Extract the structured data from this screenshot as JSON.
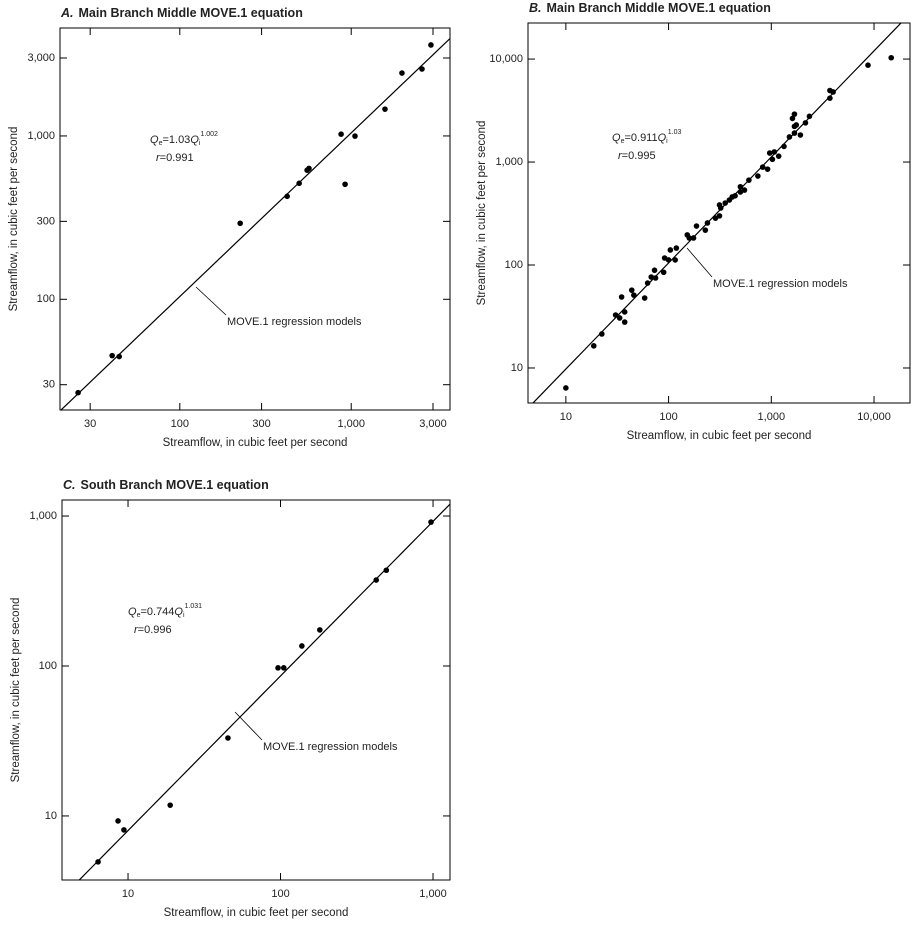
{
  "chart_data": [
    {
      "type": "scatter",
      "panel": "A.",
      "title": "Main Branch Middle MOVE.1 equation",
      "x_label": "Streamflow, in cubic feet per second",
      "y_label": "Streamflow, in cubic feet per second",
      "log_x": true,
      "log_y": true,
      "point_color": "#000000",
      "line_color": "#000000",
      "xlim": [
        20,
        3770
      ],
      "ylim": [
        21,
        4580
      ],
      "xticks": [
        30,
        100,
        300,
        {
          "value": 1000,
          "label": "1,000"
        },
        {
          "value": 3000,
          "label": "3,000"
        }
      ],
      "yticks": [
        30,
        100,
        300,
        {
          "value": 1000,
          "label": "1,000"
        },
        {
          "value": 3000,
          "label": "3,000"
        }
      ],
      "x": [
        25.5,
        40.3,
        44.3,
        225,
        423,
        497,
        553,
        567,
        873,
        921,
        1052,
        1574,
        1977,
        2588,
        2919
      ],
      "values": [
        26.8,
        45.2,
        44.6,
        292,
        427,
        513,
        617,
        633,
        1025,
        506,
        998,
        1459,
        2427,
        2570,
        3606
      ],
      "fit": {
        "coefficient": 1.03,
        "exponent": 1.002
      },
      "equation": [
        "Q",
        "e",
        "=1.03",
        "Q",
        "i",
        "1.002"
      ],
      "r_line": [
        "r",
        "=0.991"
      ],
      "annotation": "MOVE.1 regression models"
    },
    {
      "type": "scatter",
      "panel": "B.",
      "title": "Main Branch Middle MOVE.1 equation",
      "x_label": "Streamflow, in cubic feet per second",
      "y_label": "Streamflow, in cubic feet per second",
      "log_x": true,
      "log_y": true,
      "point_color": "#000000",
      "line_color": "#000000",
      "xlim": [
        4.28,
        22400
      ],
      "ylim": [
        4.57,
        22400
      ],
      "xticks": [
        10,
        100,
        {
          "value": 1000,
          "label": "1,000"
        },
        {
          "value": 10000,
          "label": "10,000"
        }
      ],
      "yticks": [
        10,
        100,
        {
          "value": 1000,
          "label": "1,000"
        },
        {
          "value": 10000,
          "label": "10,000"
        }
      ],
      "x": [
        10,
        18.7,
        22.4,
        30.5,
        33.4,
        34.9,
        37.4,
        37.4,
        43.8,
        45.9,
        58.5,
        62.5,
        67.8,
        73,
        74.7,
        89.6,
        91.5,
        100,
        104,
        116,
        119,
        152,
        159,
        175,
        187,
        228,
        239,
        286,
        313,
        313,
        322,
        356,
        391,
        416,
        444,
        500,
        500,
        548,
        605,
        740,
        825,
        920,
        965,
        1025,
        1070,
        1180,
        1330,
        1500,
        1607,
        1680,
        1750,
        1680,
        1680,
        1920,
        2150,
        2350,
        3720,
        4000,
        3720,
        8740,
        14700
      ],
      "values": [
        6.4,
        16.4,
        21.4,
        32.7,
        30.6,
        48.9,
        35,
        27.9,
        57,
        51,
        47.8,
        66.8,
        76.5,
        89,
        74.8,
        85,
        117,
        112,
        140,
        112,
        146,
        196,
        183,
        183,
        239,
        218,
        256,
        285,
        300,
        383,
        358,
        400,
        428,
        458,
        470,
        512,
        575,
        534,
        667,
        731,
        893,
        853,
        1223,
        1063,
        1254,
        1140,
        1418,
        1752,
        2650,
        2220,
        2290,
        2920,
        1910,
        1830,
        2400,
        2780,
        4950,
        4790,
        4170,
        8720,
        10300
      ],
      "fit": {
        "coefficient": 0.911,
        "exponent": 1.03
      },
      "equation": [
        "Q",
        "e",
        "=0.911",
        "Q",
        "i",
        "1.03"
      ],
      "r_line": [
        "r",
        "=0.995"
      ],
      "annotation": "MOVE.1 regression models"
    },
    {
      "type": "scatter",
      "panel": "C.",
      "title": "South Branch MOVE.1 equation",
      "x_label": "Streamflow, in cubic feet per second",
      "y_label": "Streamflow, in cubic feet per second",
      "log_x": true,
      "log_y": true,
      "point_color": "#000000",
      "line_color": "#000000",
      "xlim": [
        3.69,
        1292
      ],
      "ylim": [
        3.74,
        1279
      ],
      "xticks": [
        10,
        100,
        {
          "value": 1000,
          "label": "1,000"
        }
      ],
      "yticks": [
        10,
        100,
        {
          "value": 1000,
          "label": "1,000"
        }
      ],
      "x": [
        6.36,
        8.6,
        9.4,
        18.9,
        45.2,
        96.3,
        105,
        138,
        181,
        424,
        494,
        970
      ],
      "values": [
        4.94,
        9.26,
        8.07,
        11.8,
        33.1,
        97.2,
        97.2,
        136,
        174,
        374,
        435,
        911
      ],
      "fit": {
        "coefficient": 0.744,
        "exponent": 1.031
      },
      "equation": [
        "Q",
        "e",
        "=0.744",
        "Q",
        "i",
        "1.031"
      ],
      "r_line": [
        "r",
        "=0.996"
      ],
      "annotation": "MOVE.1 regression models"
    }
  ]
}
